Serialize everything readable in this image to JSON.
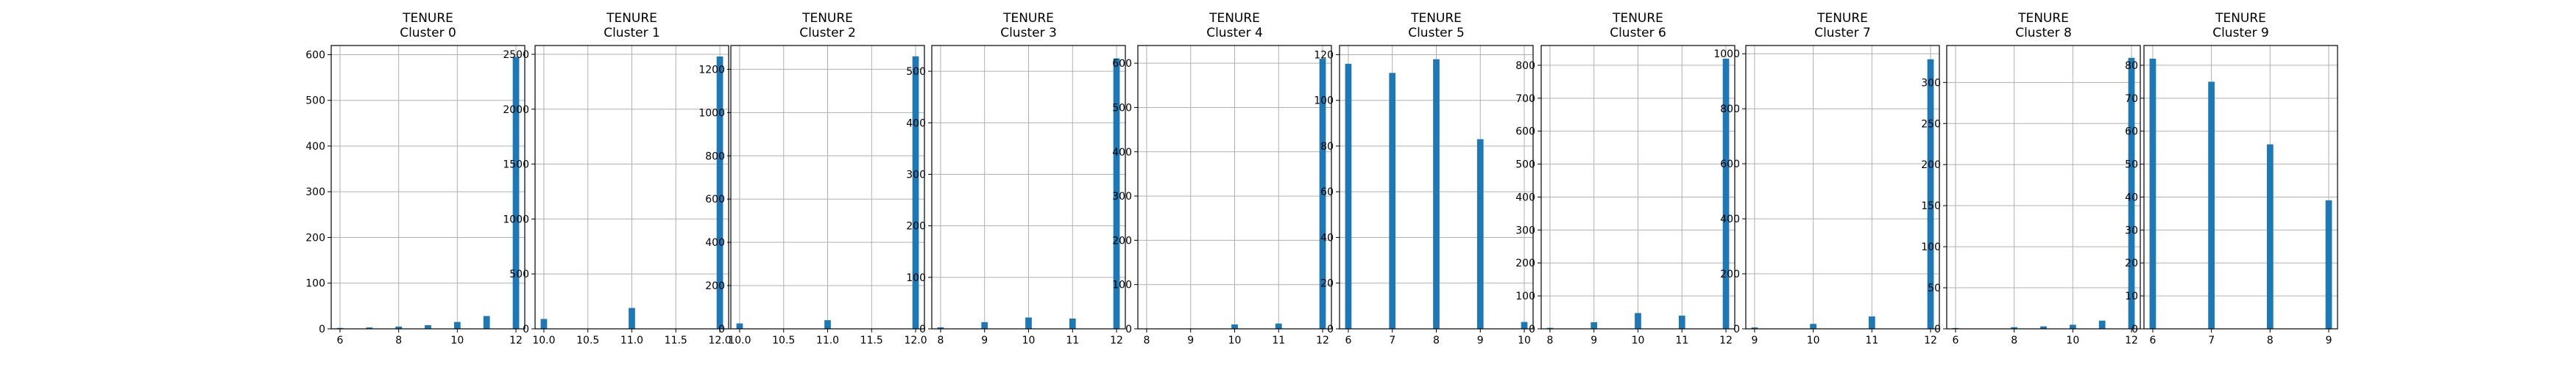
{
  "colors": {
    "bar": "#1f77b4",
    "grid": "#b0b0b0",
    "axis": "#000000"
  },
  "chart_data": [
    {
      "type": "bar",
      "title_line1": "TENURE",
      "title_line2": "Cluster 0",
      "xlim": [
        6,
        12
      ],
      "ylim": [
        0,
        620
      ],
      "xticks": [
        {
          "v": 6,
          "label": "6"
        },
        {
          "v": 8,
          "label": "8"
        },
        {
          "v": 10,
          "label": "10"
        },
        {
          "v": 12,
          "label": "12"
        }
      ],
      "yticks": [
        {
          "v": 0,
          "label": "0"
        },
        {
          "v": 100,
          "label": "100"
        },
        {
          "v": 200,
          "label": "200"
        },
        {
          "v": 300,
          "label": "300"
        },
        {
          "v": 400,
          "label": "400"
        },
        {
          "v": 500,
          "label": "500"
        },
        {
          "v": 600,
          "label": "600"
        }
      ],
      "bin_width": 0.22,
      "bars": [
        {
          "x": 6,
          "value": 2
        },
        {
          "x": 7,
          "value": 3
        },
        {
          "x": 8,
          "value": 5
        },
        {
          "x": 9,
          "value": 8
        },
        {
          "x": 10,
          "value": 15
        },
        {
          "x": 11,
          "value": 28
        },
        {
          "x": 12,
          "value": 595
        }
      ]
    },
    {
      "type": "bar",
      "title_line1": "TENURE",
      "title_line2": "Cluster 1",
      "xlim": [
        10,
        12
      ],
      "ylim": [
        0,
        2580
      ],
      "xticks": [
        {
          "v": 10,
          "label": "10.0"
        },
        {
          "v": 10.5,
          "label": "10.5"
        },
        {
          "v": 11,
          "label": "11.0"
        },
        {
          "v": 11.5,
          "label": "11.5"
        },
        {
          "v": 12,
          "label": "12.0"
        }
      ],
      "yticks": [
        {
          "v": 0,
          "label": "0"
        },
        {
          "v": 500,
          "label": "500"
        },
        {
          "v": 1000,
          "label": "1000"
        },
        {
          "v": 1500,
          "label": "1500"
        },
        {
          "v": 2000,
          "label": "2000"
        },
        {
          "v": 2500,
          "label": "2500"
        }
      ],
      "bin_width": 0.073,
      "bars": [
        {
          "x": 10,
          "value": 90
        },
        {
          "x": 11,
          "value": 190
        },
        {
          "x": 12,
          "value": 2480
        }
      ]
    },
    {
      "type": "bar",
      "title_line1": "TENURE",
      "title_line2": "Cluster 2",
      "xlim": [
        10,
        12
      ],
      "ylim": [
        0,
        1310
      ],
      "xticks": [
        {
          "v": 10,
          "label": "10.0"
        },
        {
          "v": 10.5,
          "label": "10.5"
        },
        {
          "v": 11,
          "label": "11.0"
        },
        {
          "v": 11.5,
          "label": "11.5"
        },
        {
          "v": 12,
          "label": "12.0"
        }
      ],
      "yticks": [
        {
          "v": 0,
          "label": "0"
        },
        {
          "v": 200,
          "label": "200"
        },
        {
          "v": 400,
          "label": "400"
        },
        {
          "v": 600,
          "label": "600"
        },
        {
          "v": 800,
          "label": "800"
        },
        {
          "v": 1000,
          "label": "1000"
        },
        {
          "v": 1200,
          "label": "1200"
        }
      ],
      "bin_width": 0.073,
      "bars": [
        {
          "x": 10,
          "value": 25
        },
        {
          "x": 11,
          "value": 40
        },
        {
          "x": 12,
          "value": 1260
        }
      ]
    },
    {
      "type": "bar",
      "title_line1": "TENURE",
      "title_line2": "Cluster 3",
      "xlim": [
        8,
        12
      ],
      "ylim": [
        0,
        550
      ],
      "xticks": [
        {
          "v": 8,
          "label": "8"
        },
        {
          "v": 9,
          "label": "9"
        },
        {
          "v": 10,
          "label": "10"
        },
        {
          "v": 11,
          "label": "11"
        },
        {
          "v": 12,
          "label": "12"
        }
      ],
      "yticks": [
        {
          "v": 0,
          "label": "0"
        },
        {
          "v": 100,
          "label": "100"
        },
        {
          "v": 200,
          "label": "200"
        },
        {
          "v": 300,
          "label": "300"
        },
        {
          "v": 400,
          "label": "400"
        },
        {
          "v": 500,
          "label": "500"
        }
      ],
      "bin_width": 0.146,
      "bars": [
        {
          "x": 8,
          "value": 3
        },
        {
          "x": 9,
          "value": 13
        },
        {
          "x": 10,
          "value": 22
        },
        {
          "x": 11,
          "value": 20
        },
        {
          "x": 12,
          "value": 525
        }
      ]
    },
    {
      "type": "bar",
      "title_line1": "TENURE",
      "title_line2": "Cluster 4",
      "xlim": [
        8,
        12
      ],
      "ylim": [
        0,
        640
      ],
      "xticks": [
        {
          "v": 8,
          "label": "8"
        },
        {
          "v": 9,
          "label": "9"
        },
        {
          "v": 10,
          "label": "10"
        },
        {
          "v": 11,
          "label": "11"
        },
        {
          "v": 12,
          "label": "12"
        }
      ],
      "yticks": [
        {
          "v": 0,
          "label": "0"
        },
        {
          "v": 100,
          "label": "100"
        },
        {
          "v": 200,
          "label": "200"
        },
        {
          "v": 300,
          "label": "300"
        },
        {
          "v": 400,
          "label": "400"
        },
        {
          "v": 500,
          "label": "500"
        },
        {
          "v": 600,
          "label": "600"
        }
      ],
      "bin_width": 0.146,
      "bars": [
        {
          "x": 9,
          "value": 1
        },
        {
          "x": 10,
          "value": 10
        },
        {
          "x": 11,
          "value": 12
        },
        {
          "x": 12,
          "value": 610
        }
      ]
    },
    {
      "type": "bar",
      "title_line1": "TENURE",
      "title_line2": "Cluster 5",
      "xlim": [
        6,
        10
      ],
      "ylim": [
        0,
        124
      ],
      "xticks": [
        {
          "v": 6,
          "label": "6"
        },
        {
          "v": 7,
          "label": "7"
        },
        {
          "v": 8,
          "label": "8"
        },
        {
          "v": 9,
          "label": "9"
        },
        {
          "v": 10,
          "label": "10"
        }
      ],
      "yticks": [
        {
          "v": 0,
          "label": "0"
        },
        {
          "v": 20,
          "label": "20"
        },
        {
          "v": 40,
          "label": "40"
        },
        {
          "v": 60,
          "label": "60"
        },
        {
          "v": 80,
          "label": "80"
        },
        {
          "v": 100,
          "label": "100"
        },
        {
          "v": 120,
          "label": "120"
        }
      ],
      "bin_width": 0.146,
      "bars": [
        {
          "x": 6,
          "value": 116
        },
        {
          "x": 7,
          "value": 112
        },
        {
          "x": 8,
          "value": 118
        },
        {
          "x": 9,
          "value": 83
        },
        {
          "x": 10,
          "value": 3
        }
      ]
    },
    {
      "type": "bar",
      "title_line1": "TENURE",
      "title_line2": "Cluster 6",
      "xlim": [
        8,
        12
      ],
      "ylim": [
        0,
        860
      ],
      "xticks": [
        {
          "v": 8,
          "label": "8"
        },
        {
          "v": 9,
          "label": "9"
        },
        {
          "v": 10,
          "label": "10"
        },
        {
          "v": 11,
          "label": "11"
        },
        {
          "v": 12,
          "label": "12"
        }
      ],
      "yticks": [
        {
          "v": 0,
          "label": "0"
        },
        {
          "v": 100,
          "label": "100"
        },
        {
          "v": 200,
          "label": "200"
        },
        {
          "v": 300,
          "label": "300"
        },
        {
          "v": 400,
          "label": "400"
        },
        {
          "v": 500,
          "label": "500"
        },
        {
          "v": 600,
          "label": "600"
        },
        {
          "v": 700,
          "label": "700"
        },
        {
          "v": 800,
          "label": "800"
        }
      ],
      "bin_width": 0.146,
      "bars": [
        {
          "x": 8,
          "value": 3
        },
        {
          "x": 9,
          "value": 20
        },
        {
          "x": 10,
          "value": 48
        },
        {
          "x": 11,
          "value": 40
        },
        {
          "x": 12,
          "value": 820
        }
      ]
    },
    {
      "type": "bar",
      "title_line1": "TENURE",
      "title_line2": "Cluster 7",
      "xlim": [
        9,
        12
      ],
      "ylim": [
        0,
        1030
      ],
      "xticks": [
        {
          "v": 9,
          "label": "9"
        },
        {
          "v": 10,
          "label": "10"
        },
        {
          "v": 11,
          "label": "11"
        },
        {
          "v": 12,
          "label": "12"
        }
      ],
      "yticks": [
        {
          "v": 0,
          "label": "0"
        },
        {
          "v": 200,
          "label": "200"
        },
        {
          "v": 400,
          "label": "400"
        },
        {
          "v": 600,
          "label": "600"
        },
        {
          "v": 800,
          "label": "800"
        },
        {
          "v": 1000,
          "label": "1000"
        }
      ],
      "bin_width": 0.11,
      "bars": [
        {
          "x": 9,
          "value": 5
        },
        {
          "x": 10,
          "value": 18
        },
        {
          "x": 11,
          "value": 45
        },
        {
          "x": 12,
          "value": 980
        }
      ]
    },
    {
      "type": "bar",
      "title_line1": "TENURE",
      "title_line2": "Cluster 8",
      "xlim": [
        6,
        12
      ],
      "ylim": [
        0,
        345
      ],
      "xticks": [
        {
          "v": 6,
          "label": "6"
        },
        {
          "v": 8,
          "label": "8"
        },
        {
          "v": 10,
          "label": "10"
        },
        {
          "v": 12,
          "label": "12"
        }
      ],
      "yticks": [
        {
          "v": 0,
          "label": "0"
        },
        {
          "v": 50,
          "label": "50"
        },
        {
          "v": 100,
          "label": "100"
        },
        {
          "v": 150,
          "label": "150"
        },
        {
          "v": 200,
          "label": "200"
        },
        {
          "v": 250,
          "label": "250"
        },
        {
          "v": 300,
          "label": "300"
        }
      ],
      "bin_width": 0.22,
      "bars": [
        {
          "x": 6,
          "value": 1
        },
        {
          "x": 8,
          "value": 2
        },
        {
          "x": 9,
          "value": 3
        },
        {
          "x": 10,
          "value": 5
        },
        {
          "x": 11,
          "value": 10
        },
        {
          "x": 12,
          "value": 330
        }
      ]
    },
    {
      "type": "bar",
      "title_line1": "TENURE",
      "title_line2": "Cluster 9",
      "xlim": [
        6,
        9
      ],
      "ylim": [
        0,
        86
      ],
      "xticks": [
        {
          "v": 6,
          "label": "6"
        },
        {
          "v": 7,
          "label": "7"
        },
        {
          "v": 8,
          "label": "8"
        },
        {
          "v": 9,
          "label": "9"
        }
      ],
      "yticks": [
        {
          "v": 0,
          "label": "0"
        },
        {
          "v": 10,
          "label": "10"
        },
        {
          "v": 20,
          "label": "20"
        },
        {
          "v": 30,
          "label": "30"
        },
        {
          "v": 40,
          "label": "40"
        },
        {
          "v": 50,
          "label": "50"
        },
        {
          "v": 60,
          "label": "60"
        },
        {
          "v": 70,
          "label": "70"
        },
        {
          "v": 80,
          "label": "80"
        }
      ],
      "bin_width": 0.11,
      "bars": [
        {
          "x": 6,
          "value": 82
        },
        {
          "x": 7,
          "value": 75
        },
        {
          "x": 8,
          "value": 56
        },
        {
          "x": 9,
          "value": 39
        }
      ]
    }
  ]
}
